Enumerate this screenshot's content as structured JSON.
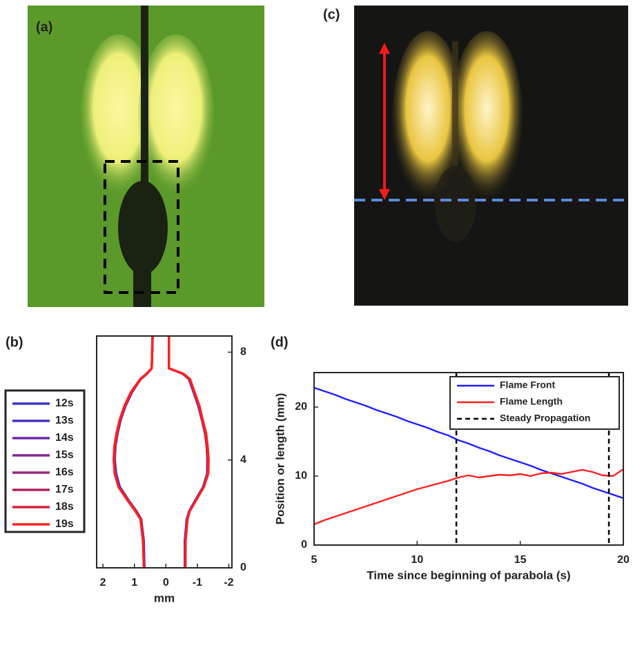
{
  "panel_labels": [
    "(a)",
    "(b)",
    "(c)",
    "(d)"
  ],
  "chart_data": [
    {
      "type": "line",
      "xlabel": "mm",
      "xlim": [
        2.2,
        -2.1
      ],
      "xticks": [
        2,
        1,
        0,
        -1,
        -2
      ],
      "ylim": [
        0,
        8.6
      ],
      "yticks": [
        0,
        4,
        8
      ],
      "yaxis_position": "right",
      "legend": "left outside",
      "series": [
        {
          "name": "12s",
          "color": "#3a36d0",
          "x": [
            0.42,
            0.45,
            0.6,
            0.8,
            1.08,
            1.28,
            1.43,
            1.53,
            1.6,
            1.62,
            1.58,
            1.46,
            1.18,
            0.93,
            0.78,
            0.7,
            0.68,
            null,
            -0.6,
            -0.6,
            -0.66,
            -0.74,
            -0.93,
            -1.18,
            -1.31,
            -1.32,
            -1.3,
            -1.24,
            -1.14,
            -1.03,
            -0.88,
            -0.73,
            -0.53,
            -0.1,
            -0.1
          ],
          "values": [
            8.6,
            7.4,
            7.2,
            7.0,
            6.5,
            6.0,
            5.5,
            5.0,
            4.5,
            4.0,
            3.5,
            3.0,
            2.5,
            2.1,
            1.8,
            1.0,
            0,
            null,
            0,
            1.0,
            1.8,
            2.1,
            2.5,
            3.0,
            3.5,
            4.0,
            4.5,
            5.0,
            5.5,
            6.0,
            6.5,
            7.0,
            7.2,
            7.4,
            8.6
          ]
        },
        {
          "name": "13s",
          "color": "#4d30c2",
          "x": [
            0.42,
            0.45,
            0.6,
            0.8,
            1.09,
            1.29,
            1.44,
            1.54,
            1.61,
            1.63,
            1.6,
            1.48,
            1.19,
            0.94,
            0.79,
            0.71,
            0.69,
            null,
            -0.61,
            -0.61,
            -0.67,
            -0.74,
            -0.94,
            -1.19,
            -1.32,
            -1.32,
            -1.3,
            -1.25,
            -1.15,
            -1.04,
            -0.89,
            -0.74,
            -0.54,
            -0.1,
            -0.1
          ],
          "values": [
            8.6,
            7.4,
            7.2,
            7.0,
            6.5,
            6.0,
            5.5,
            5.0,
            4.5,
            4.0,
            3.5,
            3.0,
            2.5,
            2.1,
            1.8,
            1.0,
            0,
            null,
            0,
            1.0,
            1.8,
            2.1,
            2.5,
            3.0,
            3.5,
            4.0,
            4.5,
            5.0,
            5.5,
            6.0,
            6.5,
            7.0,
            7.2,
            7.4,
            8.6
          ]
        },
        {
          "name": "14s",
          "color": "#6a2aaa",
          "x": [
            0.42,
            0.45,
            0.6,
            0.8,
            1.1,
            1.3,
            1.45,
            1.55,
            1.62,
            1.64,
            1.61,
            1.49,
            1.2,
            0.95,
            0.8,
            0.72,
            0.7,
            null,
            -0.62,
            -0.62,
            -0.68,
            -0.75,
            -0.95,
            -1.2,
            -1.33,
            -1.33,
            -1.3,
            -1.25,
            -1.15,
            -1.05,
            -0.9,
            -0.75,
            -0.55,
            -0.1,
            -0.1
          ],
          "values": [
            8.6,
            7.4,
            7.2,
            7.0,
            6.5,
            6.0,
            5.5,
            5.0,
            4.5,
            4.0,
            3.5,
            3.0,
            2.5,
            2.1,
            1.8,
            1.0,
            0,
            null,
            0,
            1.0,
            1.8,
            2.1,
            2.5,
            3.0,
            3.5,
            4.0,
            4.5,
            5.0,
            5.5,
            6.0,
            6.5,
            7.0,
            7.2,
            7.4,
            8.6
          ]
        },
        {
          "name": "15s",
          "color": "#80288f",
          "x": [
            0.42,
            0.45,
            0.6,
            0.8,
            1.1,
            1.3,
            1.45,
            1.55,
            1.62,
            1.65,
            1.62,
            1.5,
            1.2,
            0.95,
            0.8,
            0.72,
            0.7,
            null,
            -0.62,
            -0.62,
            -0.68,
            -0.75,
            -0.95,
            -1.2,
            -1.33,
            -1.33,
            -1.3,
            -1.25,
            -1.15,
            -1.05,
            -0.9,
            -0.75,
            -0.55,
            -0.1,
            -0.1
          ],
          "values": [
            8.6,
            7.4,
            7.2,
            7.0,
            6.5,
            6.0,
            5.5,
            5.0,
            4.5,
            4.0,
            3.5,
            3.0,
            2.5,
            2.1,
            1.8,
            1.0,
            0,
            null,
            0,
            1.0,
            1.8,
            2.1,
            2.5,
            3.0,
            3.5,
            4.0,
            4.5,
            5.0,
            5.5,
            6.0,
            6.5,
            7.0,
            7.2,
            7.4,
            8.6
          ]
        },
        {
          "name": "16s",
          "color": "#982877",
          "x": [
            0.42,
            0.45,
            0.6,
            0.8,
            1.1,
            1.3,
            1.45,
            1.55,
            1.62,
            1.65,
            1.62,
            1.5,
            1.2,
            0.95,
            0.8,
            0.72,
            0.7,
            null,
            -0.62,
            -0.62,
            -0.68,
            -0.75,
            -0.95,
            -1.2,
            -1.33,
            -1.33,
            -1.3,
            -1.25,
            -1.15,
            -1.05,
            -0.9,
            -0.75,
            -0.55,
            -0.1,
            -0.1
          ],
          "values": [
            8.6,
            7.4,
            7.2,
            7.0,
            6.5,
            6.0,
            5.5,
            5.0,
            4.5,
            4.0,
            3.5,
            3.0,
            2.5,
            2.1,
            1.8,
            1.0,
            0,
            null,
            0,
            1.0,
            1.8,
            2.1,
            2.5,
            3.0,
            3.5,
            4.0,
            4.5,
            5.0,
            5.5,
            6.0,
            6.5,
            7.0,
            7.2,
            7.4,
            8.6
          ]
        },
        {
          "name": "17s",
          "color": "#b2245e",
          "x": [
            0.42,
            0.45,
            0.6,
            0.8,
            1.1,
            1.3,
            1.45,
            1.55,
            1.62,
            1.65,
            1.62,
            1.5,
            1.2,
            0.95,
            0.8,
            0.72,
            0.7,
            null,
            -0.62,
            -0.62,
            -0.68,
            -0.75,
            -0.95,
            -1.2,
            -1.33,
            -1.33,
            -1.3,
            -1.25,
            -1.15,
            -1.05,
            -0.9,
            -0.75,
            -0.55,
            -0.1,
            -0.1
          ],
          "values": [
            8.6,
            7.4,
            7.2,
            7.0,
            6.5,
            6.0,
            5.5,
            5.0,
            4.5,
            4.0,
            3.5,
            3.0,
            2.5,
            2.1,
            1.8,
            1.0,
            0,
            null,
            0,
            1.0,
            1.8,
            2.1,
            2.5,
            3.0,
            3.5,
            4.0,
            4.5,
            5.0,
            5.5,
            6.0,
            6.5,
            7.0,
            7.2,
            7.4,
            8.6
          ]
        },
        {
          "name": "18s",
          "color": "#d41f3c",
          "x": [
            0.42,
            0.45,
            0.6,
            0.8,
            1.1,
            1.3,
            1.45,
            1.55,
            1.62,
            1.65,
            1.62,
            1.5,
            1.2,
            0.95,
            0.8,
            0.72,
            0.7,
            null,
            -0.62,
            -0.62,
            -0.68,
            -0.75,
            -0.95,
            -1.2,
            -1.33,
            -1.33,
            -1.3,
            -1.25,
            -1.15,
            -1.05,
            -0.9,
            -0.75,
            -0.55,
            -0.1,
            -0.1
          ],
          "values": [
            8.6,
            7.4,
            7.2,
            7.0,
            6.5,
            6.0,
            5.5,
            5.0,
            4.5,
            4.0,
            3.5,
            3.0,
            2.5,
            2.1,
            1.8,
            1.0,
            0,
            null,
            0,
            1.0,
            1.8,
            2.1,
            2.5,
            3.0,
            3.5,
            4.0,
            4.5,
            5.0,
            5.5,
            6.0,
            6.5,
            7.0,
            7.2,
            7.4,
            8.6
          ]
        },
        {
          "name": "19s",
          "color": "#ff2020",
          "x": [
            0.43,
            0.45,
            0.62,
            0.82,
            1.12,
            1.32,
            1.47,
            1.57,
            1.64,
            1.66,
            1.63,
            1.51,
            1.22,
            0.97,
            0.81,
            0.73,
            0.7,
            null,
            -0.62,
            -0.63,
            -0.69,
            -0.76,
            -0.96,
            -1.21,
            -1.35,
            -1.36,
            -1.33,
            -1.28,
            -1.17,
            -1.07,
            -0.92,
            -0.77,
            -0.56,
            -0.1,
            -0.1
          ],
          "values": [
            8.6,
            7.4,
            7.2,
            7.0,
            6.5,
            6.0,
            5.5,
            5.0,
            4.5,
            4.0,
            3.5,
            3.0,
            2.5,
            2.1,
            1.8,
            1.0,
            0,
            null,
            0,
            1.0,
            1.8,
            2.1,
            2.5,
            3.0,
            3.5,
            4.0,
            4.5,
            5.0,
            5.5,
            6.0,
            6.5,
            7.0,
            7.2,
            7.4,
            8.6
          ]
        }
      ]
    },
    {
      "type": "line",
      "xlabel": "Time since beginning of parabola (s)",
      "ylabel": "Position or length (mm)",
      "xlim": [
        5,
        20
      ],
      "xticks": [
        5,
        10,
        15,
        20
      ],
      "ylim": [
        0,
        25
      ],
      "yticks": [
        0,
        10,
        20
      ],
      "yaxis_position": "left",
      "legend": "upper right",
      "x": [
        5,
        5.5,
        6,
        6.5,
        7,
        7.5,
        8,
        8.5,
        9,
        9.5,
        10,
        10.5,
        11,
        11.5,
        12,
        12.5,
        13,
        13.5,
        14,
        14.5,
        15,
        15.5,
        16,
        16.5,
        17,
        17.5,
        18,
        18.5,
        19,
        19.5,
        20
      ],
      "series": [
        {
          "name": "Flame Front",
          "color": "#1f1fff",
          "values": [
            22.8,
            22.3,
            21.8,
            21.2,
            20.7,
            20.2,
            19.6,
            19.1,
            18.6,
            18.0,
            17.5,
            17.0,
            16.4,
            15.9,
            15.2,
            14.7,
            14.1,
            13.6,
            13.0,
            12.5,
            12.0,
            11.5,
            10.9,
            10.4,
            9.9,
            9.4,
            8.9,
            8.3,
            7.8,
            7.3,
            6.8
          ]
        },
        {
          "name": "Flame Length",
          "color": "#ff1f1f",
          "values": [
            3.0,
            3.6,
            4.1,
            4.6,
            5.1,
            5.6,
            6.1,
            6.6,
            7.1,
            7.6,
            8.1,
            8.5,
            8.9,
            9.3,
            9.8,
            10.1,
            9.8,
            10.0,
            10.2,
            10.1,
            10.3,
            10.0,
            10.4,
            10.5,
            10.3,
            10.6,
            10.9,
            10.6,
            10.1,
            10.0,
            11.0
          ]
        },
        {
          "name": "Steady Propagation",
          "color": "#000000",
          "dash": true,
          "vlines": [
            11.9,
            19.3
          ]
        }
      ]
    }
  ]
}
